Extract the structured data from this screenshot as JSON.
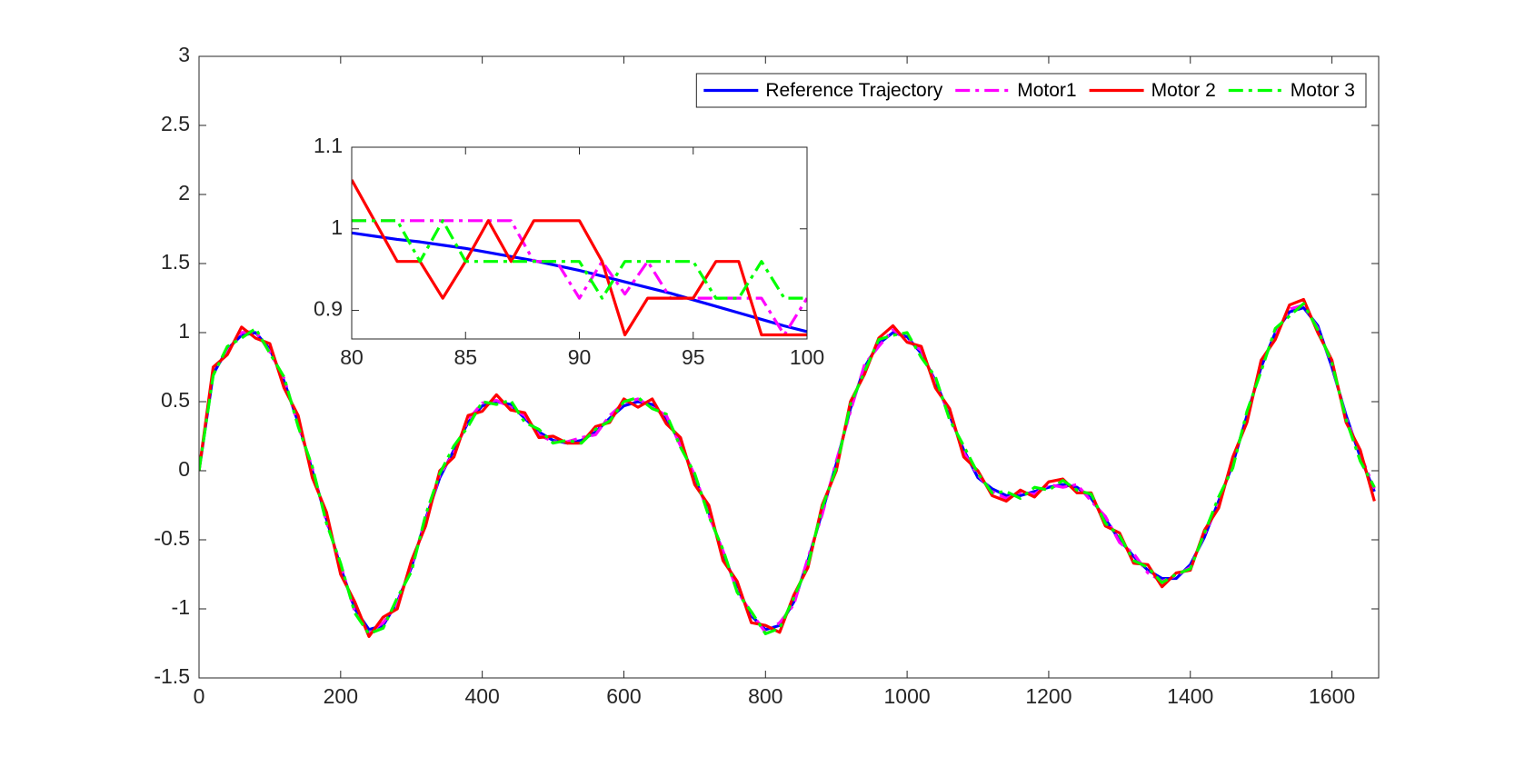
{
  "chart_data": [
    {
      "type": "line",
      "x": [
        0,
        20,
        40,
        60,
        80,
        100,
        120,
        140,
        160,
        180,
        200,
        220,
        240,
        260,
        280,
        300,
        320,
        340,
        360,
        380,
        400,
        420,
        440,
        460,
        480,
        500,
        520,
        540,
        560,
        580,
        600,
        620,
        640,
        660,
        680,
        700,
        720,
        740,
        760,
        780,
        800,
        820,
        840,
        860,
        880,
        900,
        920,
        940,
        960,
        980,
        1000,
        1020,
        1040,
        1060,
        1080,
        1100,
        1120,
        1140,
        1160,
        1180,
        1200,
        1220,
        1240,
        1260,
        1280,
        1300,
        1320,
        1340,
        1360,
        1380,
        1400,
        1420,
        1440,
        1460,
        1480,
        1500,
        1520,
        1540,
        1560,
        1580,
        1600,
        1620,
        1640,
        1660
      ],
      "series": [
        {
          "name": "Reference Trajectory",
          "color": "#0000ff",
          "style": "-",
          "values": [
            0,
            0.7,
            0.88,
            0.98,
            1.0,
            0.88,
            0.65,
            0.35,
            0.0,
            -0.35,
            -0.7,
            -1.0,
            -1.15,
            -1.12,
            -0.95,
            -0.7,
            -0.35,
            -0.05,
            0.15,
            0.35,
            0.47,
            0.5,
            0.48,
            0.38,
            0.28,
            0.22,
            0.2,
            0.22,
            0.28,
            0.38,
            0.47,
            0.5,
            0.48,
            0.38,
            0.2,
            -0.05,
            -0.3,
            -0.6,
            -0.85,
            -1.05,
            -1.15,
            -1.12,
            -0.95,
            -0.65,
            -0.3,
            0.05,
            0.45,
            0.75,
            0.92,
            1.0,
            0.97,
            0.85,
            0.65,
            0.4,
            0.15,
            -0.05,
            -0.13,
            -0.18,
            -0.18,
            -0.15,
            -0.12,
            -0.1,
            -0.12,
            -0.2,
            -0.35,
            -0.5,
            -0.62,
            -0.72,
            -0.78,
            -0.78,
            -0.68,
            -0.48,
            -0.22,
            0.05,
            0.4,
            0.75,
            1.0,
            1.15,
            1.18,
            1.05,
            0.75,
            0.4,
            0.1,
            -0.15
          ]
        },
        {
          "name": "Motor1",
          "color": "#ff00ff",
          "style": "-.",
          "values": [
            0,
            0.72,
            0.86,
            1.0,
            1.01,
            0.86,
            0.67,
            0.33,
            0.02,
            -0.37,
            -0.68,
            -1.02,
            -1.17,
            -1.1,
            -0.97,
            -0.68,
            -0.37,
            -0.03,
            0.13,
            0.37,
            0.49,
            0.51,
            0.46,
            0.4,
            0.26,
            0.21,
            0.21,
            0.24,
            0.26,
            0.4,
            0.49,
            0.52,
            0.46,
            0.4,
            0.18,
            -0.03,
            -0.32,
            -0.58,
            -0.87,
            -1.03,
            -1.17,
            -1.1,
            -0.97,
            -0.63,
            -0.32,
            0.07,
            0.43,
            0.77,
            0.9,
            1.02,
            0.95,
            0.87,
            0.63,
            0.42,
            0.13,
            -0.03,
            -0.15,
            -0.2,
            -0.16,
            -0.17,
            -0.1,
            -0.12,
            -0.1,
            -0.22,
            -0.33,
            -0.52,
            -0.6,
            -0.74,
            -0.8,
            -0.76,
            -0.7,
            -0.46,
            -0.24,
            0.07,
            0.38,
            0.77,
            0.98,
            1.17,
            1.2,
            1.03,
            0.77,
            0.38,
            0.12,
            -0.13
          ]
        },
        {
          "name": "Motor 2",
          "color": "#ff0000",
          "style": "-",
          "values": [
            0,
            0.75,
            0.84,
            1.04,
            0.96,
            0.92,
            0.6,
            0.4,
            -0.05,
            -0.3,
            -0.75,
            -0.95,
            -1.2,
            -1.06,
            -1.0,
            -0.65,
            -0.4,
            0.0,
            0.1,
            0.4,
            0.43,
            0.55,
            0.44,
            0.42,
            0.24,
            0.25,
            0.2,
            0.2,
            0.32,
            0.35,
            0.52,
            0.46,
            0.52,
            0.34,
            0.24,
            -0.1,
            -0.25,
            -0.65,
            -0.8,
            -1.1,
            -1.12,
            -1.17,
            -0.9,
            -0.7,
            -0.25,
            0.0,
            0.5,
            0.7,
            0.96,
            1.05,
            0.93,
            0.9,
            0.6,
            0.45,
            0.1,
            0.0,
            -0.18,
            -0.22,
            -0.14,
            -0.19,
            -0.08,
            -0.06,
            -0.16,
            -0.16,
            -0.4,
            -0.45,
            -0.67,
            -0.68,
            -0.84,
            -0.74,
            -0.72,
            -0.43,
            -0.27,
            0.1,
            0.35,
            0.8,
            0.95,
            1.2,
            1.24,
            1.0,
            0.8,
            0.35,
            0.15,
            -0.22
          ]
        },
        {
          "name": "Motor 3",
          "color": "#00ff00",
          "style": "-.",
          "values": [
            0,
            0.69,
            0.9,
            0.96,
            1.03,
            0.85,
            0.68,
            0.32,
            0.03,
            -0.38,
            -0.67,
            -1.03,
            -1.18,
            -1.14,
            -0.92,
            -0.73,
            -0.32,
            -0.02,
            0.18,
            0.32,
            0.5,
            0.48,
            0.51,
            0.35,
            0.3,
            0.2,
            0.22,
            0.2,
            0.3,
            0.36,
            0.5,
            0.53,
            0.45,
            0.41,
            0.17,
            -0.02,
            -0.33,
            -0.57,
            -0.88,
            -1.02,
            -1.18,
            -1.14,
            -0.92,
            -0.68,
            -0.27,
            0.02,
            0.48,
            0.72,
            0.95,
            0.98,
            1.0,
            0.82,
            0.68,
            0.37,
            0.18,
            -0.02,
            -0.16,
            -0.15,
            -0.2,
            -0.12,
            -0.14,
            -0.07,
            -0.14,
            -0.17,
            -0.38,
            -0.47,
            -0.65,
            -0.7,
            -0.81,
            -0.75,
            -0.71,
            -0.45,
            -0.19,
            0.02,
            0.43,
            0.72,
            1.03,
            1.12,
            1.21,
            1.02,
            0.78,
            0.37,
            0.07,
            -0.12
          ]
        }
      ],
      "xlim": [
        0,
        1666
      ],
      "xticks": [
        0,
        200,
        400,
        600,
        800,
        1000,
        1200,
        1400,
        1600
      ],
      "ylim": [
        -1.5,
        3
      ],
      "yticks": [
        -1.5,
        -1,
        -0.5,
        0,
        0.5,
        1,
        1.5,
        2,
        2.5,
        3
      ],
      "legend": "upper right"
    },
    {
      "type": "line",
      "x": [
        80,
        81,
        82,
        83,
        84,
        85,
        86,
        87,
        88,
        89,
        90,
        91,
        92,
        93,
        94,
        95,
        96,
        97,
        98,
        99,
        100
      ],
      "series": [
        {
          "name": "Reference Trajectory",
          "color": "#0000ff",
          "style": "-",
          "values": [
            0.995,
            0.991,
            0.987,
            0.984,
            0.98,
            0.976,
            0.971,
            0.966,
            0.961,
            0.955,
            0.949,
            0.942,
            0.935,
            0.928,
            0.921,
            0.913,
            0.905,
            0.897,
            0.889,
            0.881,
            0.874
          ]
        },
        {
          "name": "Motor1",
          "color": "#ff00ff",
          "style": "-.",
          "values": [
            1.01,
            1.01,
            1.01,
            1.01,
            1.01,
            1.01,
            1.01,
            1.01,
            0.96,
            0.96,
            0.915,
            0.96,
            0.92,
            0.96,
            0.915,
            0.915,
            0.915,
            0.915,
            0.915,
            0.87,
            0.915
          ]
        },
        {
          "name": "Motor 2",
          "color": "#ff0000",
          "style": "-",
          "values": [
            1.06,
            1.01,
            0.96,
            0.96,
            0.915,
            0.96,
            1.01,
            0.96,
            1.01,
            1.01,
            1.01,
            0.96,
            0.87,
            0.915,
            0.915,
            0.915,
            0.96,
            0.96,
            0.87,
            0.87,
            0.87
          ]
        },
        {
          "name": "Motor 3",
          "color": "#00ff00",
          "style": "-.",
          "values": [
            1.01,
            1.01,
            1.01,
            0.96,
            1.01,
            0.96,
            0.96,
            0.96,
            0.96,
            0.96,
            0.96,
            0.915,
            0.96,
            0.96,
            0.96,
            0.96,
            0.915,
            0.915,
            0.96,
            0.915,
            0.915
          ]
        }
      ],
      "xlim": [
        80,
        100
      ],
      "xticks": [
        80,
        85,
        90,
        95,
        100
      ],
      "ylim": [
        0.865,
        1.1
      ],
      "yticks": [
        0.9,
        1,
        1.1
      ]
    }
  ]
}
